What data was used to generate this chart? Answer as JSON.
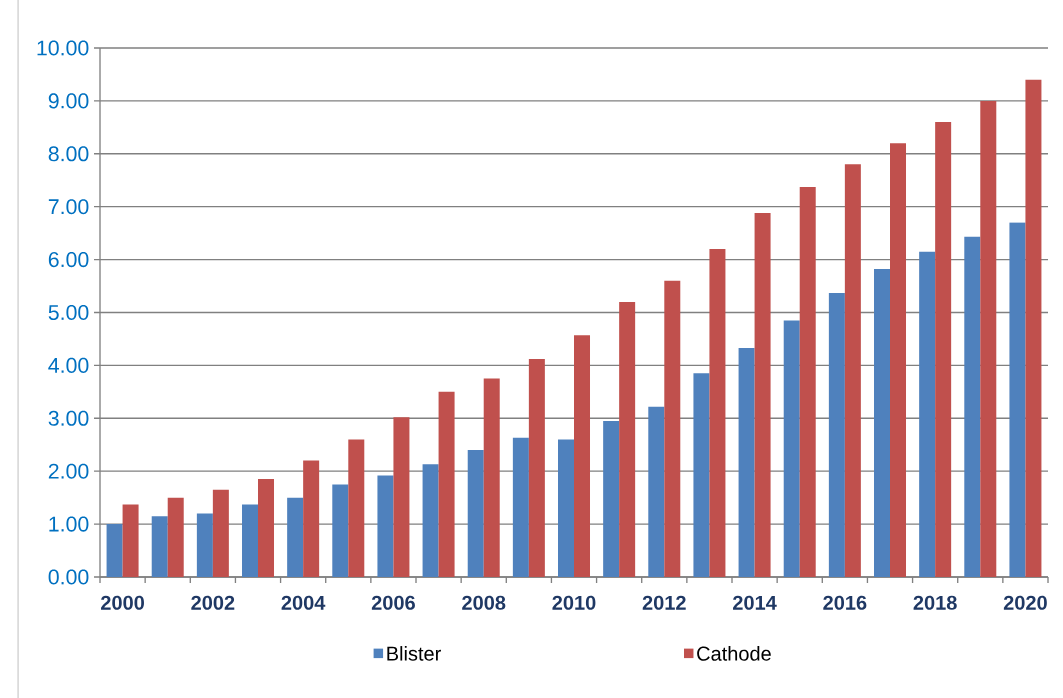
{
  "chart_data": {
    "type": "bar",
    "categories": [
      "2000",
      null,
      "2002",
      null,
      "2004",
      null,
      "2006",
      null,
      "2008",
      null,
      "2010",
      null,
      "2012",
      null,
      "2014",
      null,
      "2016",
      null,
      "2018",
      null,
      "2020"
    ],
    "series": [
      {
        "name": "Blister",
        "color": "#4f81bd",
        "values": [
          1.0,
          1.15,
          1.2,
          1.37,
          1.5,
          1.75,
          1.92,
          2.13,
          2.4,
          2.63,
          2.6,
          2.95,
          3.22,
          3.85,
          4.33,
          4.85,
          5.37,
          5.82,
          6.15,
          6.43,
          6.7
        ]
      },
      {
        "name": "Cathode",
        "color": "#c0504d",
        "values": [
          1.37,
          1.5,
          1.65,
          1.85,
          2.2,
          2.6,
          3.02,
          3.5,
          3.75,
          4.12,
          4.57,
          5.2,
          5.6,
          6.2,
          6.88,
          7.37,
          7.8,
          8.2,
          8.6,
          9.0,
          9.4
        ]
      }
    ],
    "ylim": [
      0,
      10
    ],
    "yticks": [
      {
        "value": 0,
        "label": "0.00"
      },
      {
        "value": 1,
        "label": "1.00"
      },
      {
        "value": 2,
        "label": "2.00"
      },
      {
        "value": 3,
        "label": "3.00"
      },
      {
        "value": 4,
        "label": "4.00"
      },
      {
        "value": 5,
        "label": "5.00"
      },
      {
        "value": 6,
        "label": "6.00"
      },
      {
        "value": 7,
        "label": "7.00"
      },
      {
        "value": 8,
        "label": "8.00"
      },
      {
        "value": 9,
        "label": "9.00"
      },
      {
        "value": 10,
        "label": "10.00"
      }
    ],
    "grid": "y",
    "legend": "bottom"
  }
}
